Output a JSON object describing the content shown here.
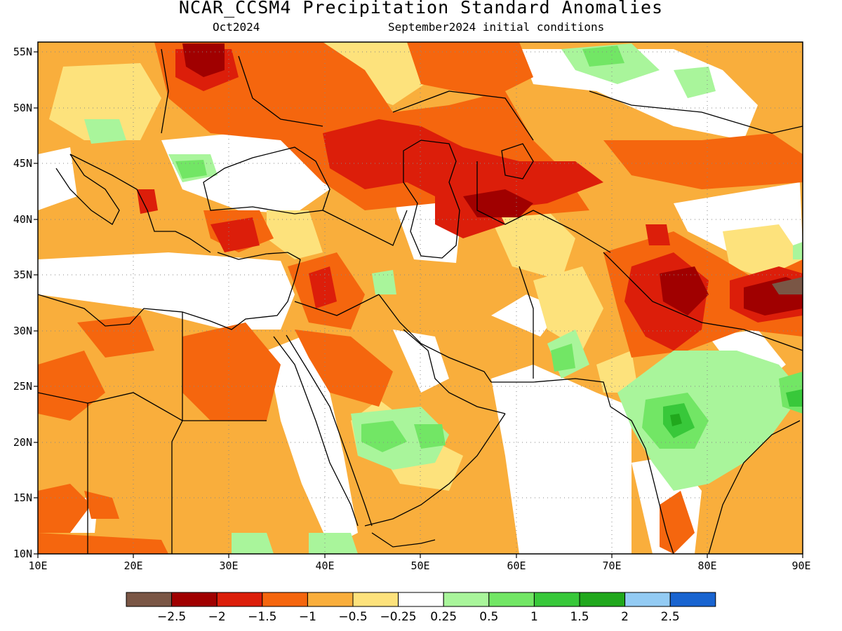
{
  "title": "NCAR_CCSM4 Precipitation Standard Anomalies",
  "subtitle_left": "Oct2024",
  "subtitle_right": "September2024 initial conditions",
  "map": {
    "lon_range": [
      10,
      90
    ],
    "lat_range": [
      10,
      56
    ],
    "lon_ticks": [
      "10E",
      "20E",
      "30E",
      "40E",
      "50E",
      "60E",
      "70E",
      "80E",
      "90E"
    ],
    "lat_ticks": [
      "55N",
      "50N",
      "45N",
      "40N",
      "35N",
      "30N",
      "25N",
      "20N",
      "15N",
      "10N"
    ],
    "gridlines": "dotted"
  },
  "colorbar": {
    "colors": [
      "#7a5645",
      "#a00000",
      "#dc1e0a",
      "#f5660e",
      "#f9ae3c",
      "#fde27c",
      "#ffffff",
      "#a9f59b",
      "#72e665",
      "#38c83a",
      "#21a81d",
      "#93cbf3",
      "#1964d0"
    ],
    "labels": [
      "−2.5",
      "−2",
      "−1.5",
      "−1",
      "−0.5",
      "−0.25",
      "0.25",
      "0.5",
      "1",
      "1.5",
      "2",
      "2.5"
    ]
  }
}
